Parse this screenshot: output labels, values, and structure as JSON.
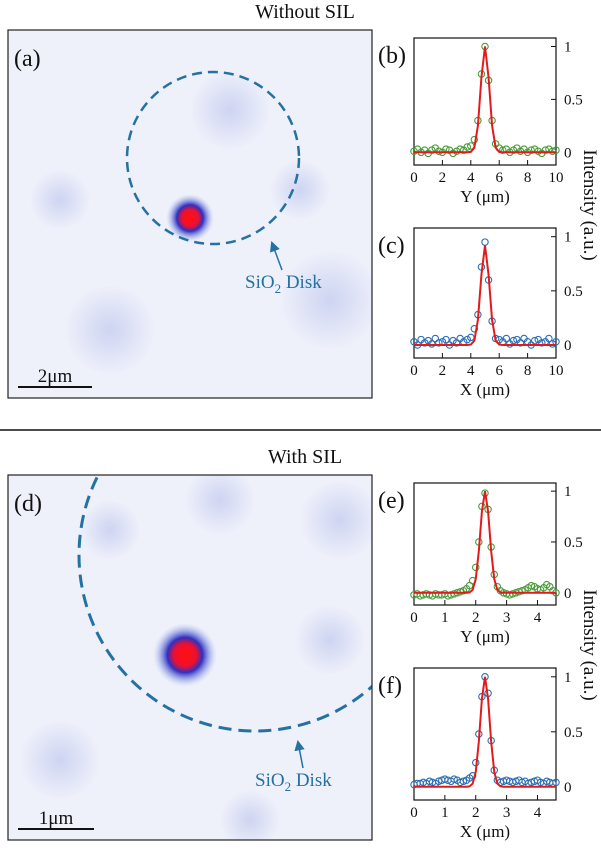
{
  "titles": [
    "Without SIL",
    "With SIL"
  ],
  "shared_ylabel": "Intensity (a.u.)",
  "images": [
    {
      "label": "(a)",
      "scale_bar": "2μm",
      "annotation": {
        "base": "SiO",
        "sub": "2",
        "rest": " Disk"
      }
    },
    {
      "label": "(d)",
      "scale_bar": "1μm",
      "annotation": {
        "base": "SiO",
        "sub": "2",
        "rest": " Disk"
      }
    }
  ],
  "chart_data": [
    {
      "type": "line",
      "label": "(b)",
      "xlabel": "Y (μm)",
      "x": [
        0,
        0.25,
        0.5,
        0.75,
        1,
        1.25,
        1.5,
        1.75,
        2,
        2.25,
        2.5,
        2.75,
        3,
        3.25,
        3.5,
        3.75,
        4,
        4.25,
        4.5,
        4.75,
        5,
        5.25,
        5.5,
        5.75,
        6,
        6.25,
        6.5,
        6.75,
        7,
        7.25,
        7.5,
        7.75,
        8,
        8.25,
        8.5,
        8.75,
        9,
        9.25,
        9.5,
        9.75,
        10
      ],
      "series": [
        {
          "color": "#4a9c3a",
          "marker": "circle",
          "values": [
            0.01,
            0.03,
            0.0,
            0.02,
            -0.01,
            0.02,
            0.04,
            0.01,
            0.0,
            0.03,
            0.02,
            -0.01,
            0.01,
            0.03,
            0.02,
            0.05,
            0.06,
            0.12,
            0.3,
            0.74,
            1.0,
            0.68,
            0.3,
            0.08,
            0.04,
            0.02,
            0.03,
            0.0,
            0.02,
            0.04,
            0.01,
            0.03,
            0.0,
            0.02,
            0.03,
            0.01,
            -0.01,
            0.02,
            0.03,
            0.01,
            0.02
          ]
        },
        {
          "color": "#e31a1c",
          "marker": "none",
          "values": [
            0,
            0,
            0,
            0,
            0,
            0,
            0,
            0,
            0,
            0,
            0,
            0,
            0,
            0,
            0,
            0,
            0.004,
            0.044,
            0.25,
            0.71,
            1,
            0.71,
            0.25,
            0.044,
            0.004,
            0,
            0,
            0,
            0,
            0,
            0,
            0,
            0,
            0,
            0,
            0,
            0,
            0,
            0,
            0,
            0
          ]
        }
      ],
      "xlim": [
        0,
        10
      ],
      "xticks": [
        0,
        2,
        4,
        6,
        8,
        10
      ],
      "ylim": [
        -0.12,
        1.08
      ],
      "yticks": [
        0,
        0.5,
        1
      ]
    },
    {
      "type": "line",
      "label": "(c)",
      "xlabel": "X (μm)",
      "x": [
        0,
        0.25,
        0.5,
        0.75,
        1,
        1.25,
        1.5,
        1.75,
        2,
        2.25,
        2.5,
        2.75,
        3,
        3.25,
        3.5,
        3.75,
        4,
        4.25,
        4.5,
        4.75,
        5,
        5.25,
        5.5,
        5.75,
        6,
        6.25,
        6.5,
        6.75,
        7,
        7.25,
        7.5,
        7.75,
        8,
        8.25,
        8.5,
        8.75,
        9,
        9.25,
        9.5,
        9.75,
        10
      ],
      "series": [
        {
          "color": "#2c6fb5",
          "marker": "circle",
          "values": [
            0.03,
            0.0,
            0.05,
            0.02,
            0.04,
            0.01,
            0.06,
            0.02,
            0.03,
            0.05,
            0.0,
            0.04,
            0.02,
            0.06,
            0.03,
            0.05,
            0.07,
            0.15,
            0.28,
            0.72,
            0.95,
            0.6,
            0.22,
            0.06,
            0.05,
            0.03,
            0.06,
            0.01,
            0.04,
            0.05,
            0.02,
            0.06,
            0.03,
            0.0,
            0.04,
            0.05,
            0.02,
            0.03,
            0.06,
            0.01,
            0.03
          ]
        },
        {
          "color": "#e31a1c",
          "marker": "none",
          "values": [
            0,
            0,
            0,
            0,
            0,
            0,
            0,
            0,
            0,
            0,
            0,
            0,
            0,
            0,
            0,
            0,
            0.004,
            0.04,
            0.23,
            0.65,
            0.92,
            0.65,
            0.23,
            0.04,
            0.004,
            0,
            0,
            0,
            0,
            0,
            0,
            0,
            0,
            0,
            0,
            0,
            0,
            0,
            0,
            0,
            0
          ]
        }
      ],
      "xlim": [
        0,
        10
      ],
      "xticks": [
        0,
        2,
        4,
        6,
        8,
        10
      ],
      "ylim": [
        -0.12,
        1.08
      ],
      "yticks": [
        0,
        0.5,
        1
      ]
    },
    {
      "type": "line",
      "label": "(e)",
      "xlabel": "Y (μm)",
      "x": [
        0,
        0.1,
        0.2,
        0.3,
        0.4,
        0.5,
        0.6,
        0.7,
        0.8,
        0.9,
        1,
        1.1,
        1.2,
        1.3,
        1.4,
        1.5,
        1.6,
        1.7,
        1.8,
        1.9,
        2,
        2.1,
        2.2,
        2.3,
        2.4,
        2.5,
        2.6,
        2.7,
        2.8,
        2.9,
        3,
        3.1,
        3.2,
        3.3,
        3.4,
        3.5,
        3.6,
        3.7,
        3.8,
        3.9,
        4,
        4.1,
        4.2,
        4.3,
        4.4,
        4.5,
        4.6
      ],
      "series": [
        {
          "color": "#4a9c3a",
          "marker": "circle",
          "values": [
            -0.02,
            -0.01,
            -0.03,
            -0.02,
            -0.01,
            -0.02,
            -0.03,
            -0.01,
            -0.02,
            -0.02,
            -0.01,
            -0.03,
            -0.02,
            -0.01,
            0.0,
            0.01,
            0.02,
            0.04,
            0.07,
            0.12,
            0.25,
            0.5,
            0.85,
            0.98,
            0.82,
            0.45,
            0.18,
            0.06,
            0.02,
            0.0,
            -0.01,
            -0.02,
            -0.01,
            0.0,
            0.01,
            0.02,
            0.03,
            0.05,
            0.07,
            0.06,
            0.04,
            0.03,
            0.05,
            0.08,
            0.06,
            0.02,
            0.0
          ]
        },
        {
          "color": "#e31a1c",
          "marker": "none",
          "values": [
            0,
            0,
            0,
            0,
            0,
            0,
            0,
            0,
            0,
            0,
            0,
            0,
            0,
            0,
            0,
            0,
            0,
            0,
            0.004,
            0.029,
            0.135,
            0.41,
            0.8,
            1,
            0.8,
            0.41,
            0.135,
            0.029,
            0.004,
            0,
            0,
            0,
            0,
            0,
            0,
            0,
            0,
            0,
            0,
            0,
            0,
            0,
            0,
            0,
            0,
            0,
            0
          ]
        }
      ],
      "xlim": [
        0,
        4.6
      ],
      "xticks": [
        0,
        1,
        2,
        3,
        4
      ],
      "ylim": [
        -0.12,
        1.08
      ],
      "yticks": [
        0,
        0.5,
        1
      ]
    },
    {
      "type": "line",
      "label": "(f)",
      "xlabel": "X (μm)",
      "x": [
        0,
        0.1,
        0.2,
        0.3,
        0.4,
        0.5,
        0.6,
        0.7,
        0.8,
        0.9,
        1,
        1.1,
        1.2,
        1.3,
        1.4,
        1.5,
        1.6,
        1.7,
        1.8,
        1.9,
        2,
        2.1,
        2.2,
        2.3,
        2.4,
        2.5,
        2.6,
        2.7,
        2.8,
        2.9,
        3,
        3.1,
        3.2,
        3.3,
        3.4,
        3.5,
        3.6,
        3.7,
        3.8,
        3.9,
        4,
        4.1,
        4.2,
        4.3,
        4.4,
        4.5,
        4.6
      ],
      "series": [
        {
          "color": "#2c6fb5",
          "marker": "circle",
          "values": [
            0.02,
            0.03,
            0.03,
            0.04,
            0.03,
            0.05,
            0.04,
            0.03,
            0.05,
            0.06,
            0.07,
            0.06,
            0.05,
            0.07,
            0.06,
            0.04,
            0.05,
            0.06,
            0.08,
            0.1,
            0.22,
            0.48,
            0.82,
            1.0,
            0.85,
            0.42,
            0.15,
            0.06,
            0.04,
            0.05,
            0.06,
            0.05,
            0.04,
            0.05,
            0.06,
            0.04,
            0.05,
            0.03,
            0.04,
            0.05,
            0.06,
            0.04,
            0.03,
            0.05,
            0.04,
            0.03,
            0.04
          ]
        },
        {
          "color": "#e31a1c",
          "marker": "none",
          "values": [
            0,
            0,
            0,
            0,
            0,
            0,
            0,
            0,
            0,
            0,
            0,
            0,
            0,
            0,
            0,
            0,
            0,
            0,
            0.004,
            0.029,
            0.135,
            0.41,
            0.8,
            1,
            0.8,
            0.41,
            0.135,
            0.029,
            0.004,
            0,
            0,
            0,
            0,
            0,
            0,
            0,
            0,
            0,
            0,
            0,
            0,
            0,
            0,
            0,
            0,
            0,
            0
          ]
        }
      ],
      "xlim": [
        0,
        4.6
      ],
      "xticks": [
        0,
        1,
        2,
        3,
        4
      ],
      "ylim": [
        -0.12,
        1.08
      ],
      "yticks": [
        0,
        0.5,
        1
      ]
    }
  ]
}
